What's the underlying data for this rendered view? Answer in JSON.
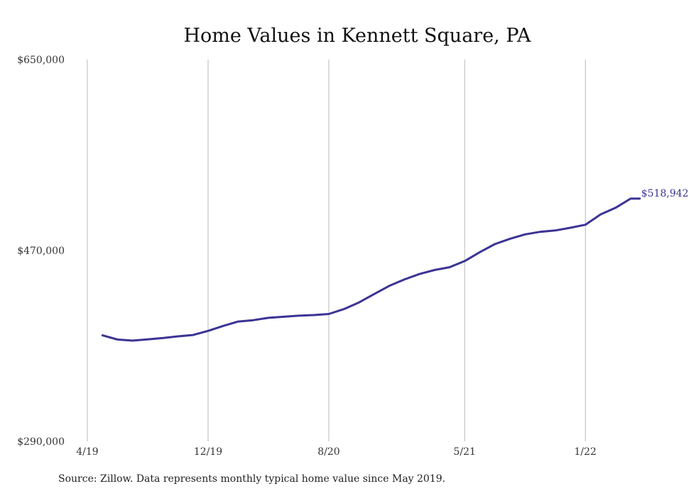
{
  "chart_data": {
    "type": "line",
    "title": "Home Values in Kennett Square, PA",
    "xlabel": "",
    "ylabel": "",
    "ylim": [
      290000,
      650000
    ],
    "y_ticks": [
      "$650,000",
      "$470,000",
      "$290,000"
    ],
    "y_tick_values": [
      650000,
      470000,
      290000
    ],
    "x_ticks": [
      "4/19",
      "12/19",
      "8/20",
      "5/21",
      "1/22"
    ],
    "x_tick_months": [
      "2019-04",
      "2019-12",
      "2020-08",
      "2021-05",
      "2022-01"
    ],
    "vertical_grid": true,
    "horizontal_grid": false,
    "series": [
      {
        "color": "#3b3494",
        "x": [
          "2019-05",
          "2019-06",
          "2019-07",
          "2019-08",
          "2019-09",
          "2019-10",
          "2019-11",
          "2019-12",
          "2020-01",
          "2020-02",
          "2020-03",
          "2020-04",
          "2020-05",
          "2020-06",
          "2020-07",
          "2020-08",
          "2020-09",
          "2020-10",
          "2020-11",
          "2020-12",
          "2021-01",
          "2021-02",
          "2021-03",
          "2021-04",
          "2021-05",
          "2021-06",
          "2021-07",
          "2021-08",
          "2021-09",
          "2021-10",
          "2021-11",
          "2021-12",
          "2022-01",
          "2022-02",
          "2022-03",
          "2022-04",
          "2022-05"
        ],
        "values": [
          390000,
          386000,
          385000,
          386200,
          387400,
          389000,
          390300,
          394200,
          398900,
          403000,
          404300,
          406500,
          407500,
          408500,
          409100,
          410100,
          414700,
          421000,
          428900,
          436600,
          442600,
          447800,
          451600,
          454200,
          460000,
          468400,
          476000,
          481000,
          485200,
          487600,
          488900,
          491400,
          494300,
          503900,
          510300,
          518942,
          518942
        ]
      }
    ],
    "end_label": "$518,942"
  },
  "source_note": "Source: Zillow. Data represents monthly typical home value since May 2019."
}
